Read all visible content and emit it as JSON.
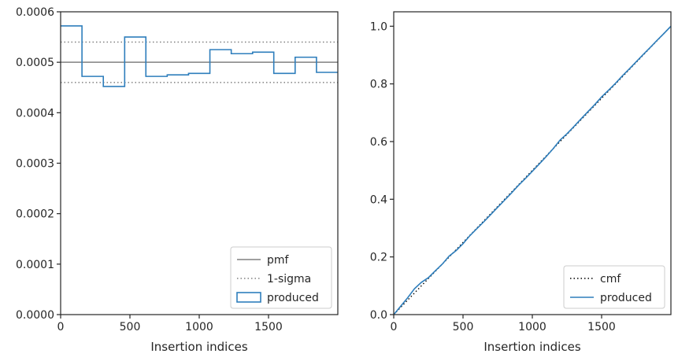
{
  "chart_data": [
    {
      "type": "line",
      "xlabel": "Insertion indices",
      "ylabel": "",
      "xlim": [
        0,
        2000
      ],
      "ylim": [
        0,
        0.0006
      ],
      "xticks": [
        0,
        500,
        1000,
        1500
      ],
      "xtick_labels": [
        "0",
        "500",
        "1000",
        "1500"
      ],
      "yticks": [
        0,
        0.0001,
        0.0002,
        0.0003,
        0.0004,
        0.0005,
        0.0006
      ],
      "ytick_labels": [
        "0.0000",
        "0.0001",
        "0.0002",
        "0.0003",
        "0.0004",
        "0.0005",
        "0.0006"
      ],
      "grid": false,
      "legend_position": "bottom-right",
      "series": [
        {
          "name": "pmf",
          "kind": "hline",
          "value": 0.0005,
          "color": "#808080",
          "style": "solid"
        },
        {
          "name": "1-sigma",
          "kind": "hlines",
          "values": [
            0.00046,
            0.00054
          ],
          "color": "#808080",
          "style": "dotted"
        },
        {
          "name": "produced",
          "kind": "step",
          "color": "#2e7ebc",
          "bin_edges": [
            0,
            154,
            308,
            462,
            615,
            769,
            923,
            1077,
            1231,
            1385,
            1538,
            1692,
            1846,
            2000
          ],
          "values": [
            0.000572,
            0.000472,
            0.000452,
            0.00055,
            0.000472,
            0.000475,
            0.000478,
            0.000525,
            0.000517,
            0.00052,
            0.000478,
            0.00051,
            0.00048
          ]
        }
      ]
    },
    {
      "type": "line",
      "xlabel": "Insertion indices",
      "ylabel": "",
      "xlim": [
        0,
        2000
      ],
      "ylim": [
        0,
        1.05
      ],
      "xticks": [
        0,
        500,
        1000,
        1500
      ],
      "xtick_labels": [
        "0",
        "500",
        "1000",
        "1500"
      ],
      "yticks": [
        0,
        0.2,
        0.4,
        0.6,
        0.8,
        1.0
      ],
      "ytick_labels": [
        "0.0",
        "0.2",
        "0.4",
        "0.6",
        "0.8",
        "1.0"
      ],
      "grid": false,
      "legend_position": "bottom-right",
      "series": [
        {
          "name": "cmf",
          "kind": "line",
          "color": "#000000",
          "style": "dotted",
          "x": [
            0,
            2000
          ],
          "y": [
            0,
            1.0
          ]
        },
        {
          "name": "produced",
          "kind": "line",
          "color": "#2e7ebc",
          "x": [
            0,
            50,
            100,
            150,
            200,
            250,
            300,
            350,
            400,
            450,
            500,
            550,
            600,
            650,
            700,
            750,
            800,
            850,
            900,
            950,
            1000,
            1050,
            1100,
            1150,
            1200,
            1250,
            1300,
            1350,
            1400,
            1450,
            1500,
            1550,
            1600,
            1650,
            1700,
            1750,
            1800,
            1850,
            1900,
            1950,
            2000
          ],
          "y": [
            0,
            0.029,
            0.058,
            0.09,
            0.112,
            0.128,
            0.152,
            0.175,
            0.203,
            0.222,
            0.246,
            0.274,
            0.298,
            0.322,
            0.347,
            0.372,
            0.397,
            0.422,
            0.448,
            0.472,
            0.497,
            0.522,
            0.548,
            0.575,
            0.605,
            0.627,
            0.652,
            0.678,
            0.703,
            0.728,
            0.755,
            0.778,
            0.802,
            0.828,
            0.852,
            0.877,
            0.902,
            0.926,
            0.951,
            0.975,
            1.0
          ]
        }
      ]
    }
  ]
}
